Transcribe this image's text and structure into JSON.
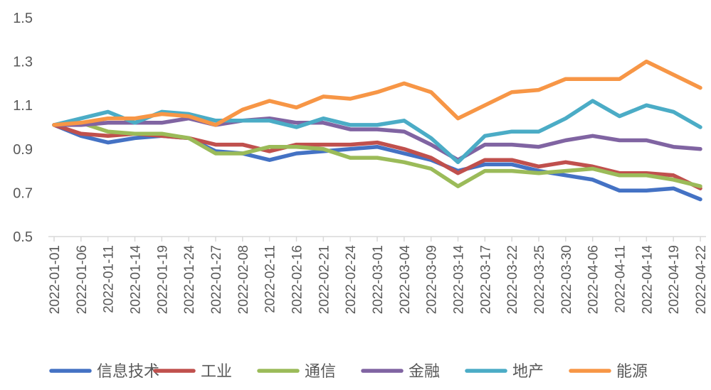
{
  "chart_data": {
    "type": "line",
    "title": "",
    "xlabel": "",
    "ylabel": "",
    "ylim": [
      0.5,
      1.5
    ],
    "yticks": [
      "1.5",
      "1.3",
      "1.1",
      "0.9",
      "0.7",
      "0.5"
    ],
    "grid": false,
    "legend_position": "bottom",
    "x": [
      "2022-01-01",
      "2022-01-06",
      "2022-01-11",
      "2022-01-14",
      "2022-01-19",
      "2022-01-24",
      "2022-01-27",
      "2022-02-08",
      "2022-02-11",
      "2022-02-16",
      "2022-02-21",
      "2022-02-24",
      "2022-03-01",
      "2022-03-04",
      "2022-03-09",
      "2022-03-14",
      "2022-03-17",
      "2022-03-22",
      "2022-03-25",
      "2022-03-30",
      "2022-04-06",
      "2022-04-11",
      "2022-04-14",
      "2022-04-19",
      "2022-04-22"
    ],
    "series": [
      {
        "name": "信息技术",
        "color": "#4472C4",
        "values": [
          1.01,
          0.96,
          0.93,
          0.95,
          0.96,
          0.95,
          0.89,
          0.88,
          0.85,
          0.88,
          0.89,
          0.9,
          0.91,
          0.88,
          0.85,
          0.8,
          0.83,
          0.83,
          0.8,
          0.78,
          0.76,
          0.71,
          0.71,
          0.72,
          0.67
        ]
      },
      {
        "name": "工业",
        "color": "#C0504D",
        "values": [
          1.01,
          0.97,
          0.96,
          0.97,
          0.96,
          0.95,
          0.92,
          0.92,
          0.89,
          0.92,
          0.92,
          0.92,
          0.93,
          0.9,
          0.86,
          0.79,
          0.85,
          0.85,
          0.82,
          0.84,
          0.82,
          0.79,
          0.79,
          0.78,
          0.72
        ]
      },
      {
        "name": "通信",
        "color": "#9BBB59",
        "values": [
          1.01,
          1.02,
          0.98,
          0.97,
          0.97,
          0.95,
          0.88,
          0.88,
          0.91,
          0.91,
          0.9,
          0.86,
          0.86,
          0.84,
          0.81,
          0.73,
          0.8,
          0.8,
          0.79,
          0.8,
          0.81,
          0.78,
          0.78,
          0.76,
          0.73
        ]
      },
      {
        "name": "金融",
        "color": "#8064A2",
        "values": [
          1.01,
          1.01,
          1.02,
          1.02,
          1.02,
          1.04,
          1.01,
          1.03,
          1.04,
          1.02,
          1.02,
          0.99,
          0.99,
          0.98,
          0.92,
          0.85,
          0.92,
          0.92,
          0.91,
          0.94,
          0.96,
          0.94,
          0.94,
          0.91,
          0.9
        ]
      },
      {
        "name": "地产",
        "color": "#4BACC6",
        "values": [
          1.01,
          1.04,
          1.07,
          1.02,
          1.07,
          1.06,
          1.03,
          1.03,
          1.03,
          1.0,
          1.04,
          1.01,
          1.01,
          1.03,
          0.95,
          0.84,
          0.96,
          0.98,
          0.98,
          1.04,
          1.12,
          1.05,
          1.1,
          1.07,
          1.0
        ]
      },
      {
        "name": "能源",
        "color": "#F79646",
        "values": [
          1.01,
          1.02,
          1.04,
          1.04,
          1.06,
          1.05,
          1.01,
          1.08,
          1.12,
          1.09,
          1.14,
          1.13,
          1.16,
          1.2,
          1.16,
          1.04,
          1.1,
          1.16,
          1.17,
          1.22,
          1.22,
          1.22,
          1.3,
          1.24,
          1.18
        ]
      }
    ]
  }
}
